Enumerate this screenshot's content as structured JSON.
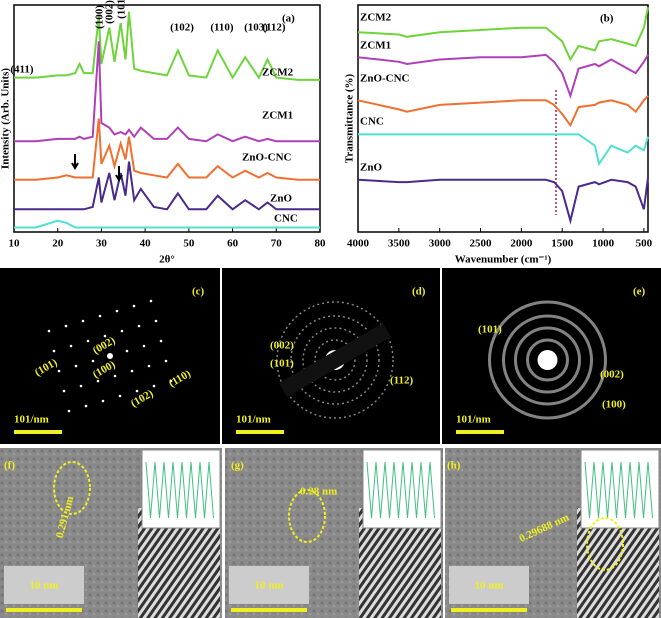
{
  "chart_data": [
    {
      "type": "line",
      "label": "(a)",
      "xlabel": "2θ°",
      "ylabel": "Intensity (Arb. Units)",
      "x": [
        10,
        15,
        20,
        22,
        24,
        25,
        26,
        28,
        29.4,
        30,
        31.8,
        33,
        34.4,
        35.5,
        36.3,
        37.5,
        39,
        42,
        45,
        47.5,
        50,
        54,
        56.6,
        60,
        62.9,
        66,
        68,
        70,
        75,
        80
      ],
      "xlim": [
        10,
        80
      ],
      "xticks": [
        10,
        20,
        30,
        40,
        50,
        60,
        70,
        80
      ],
      "ylim": [
        0,
        100
      ],
      "peak_labels": [
        "(411)",
        "(100)",
        "(002)",
        "(101)",
        "(102)",
        "(110)",
        "(103)",
        "(112)"
      ],
      "series": [
        {
          "name": "ZCM2",
          "color": "#6fd43c",
          "values": [
            68,
            68,
            69,
            69,
            70,
            74,
            70,
            70,
            95,
            74,
            90,
            75,
            92,
            76,
            97,
            72,
            71,
            70,
            69,
            80,
            69,
            68,
            80,
            68,
            77,
            68,
            76,
            68,
            67,
            67
          ]
        },
        {
          "name": "ZCM1",
          "color": "#b040b8",
          "values": [
            40,
            40,
            41,
            41,
            41,
            42,
            41,
            42,
            84,
            48,
            46,
            43,
            44,
            43,
            45,
            42,
            46,
            41,
            41,
            46,
            41,
            40,
            43,
            40,
            42,
            40,
            41,
            40,
            40,
            40
          ]
        },
        {
          "name": "ZnO-CNC",
          "color": "#f07030",
          "values": [
            23,
            23,
            24,
            25,
            24,
            24,
            24,
            24,
            50,
            30,
            38,
            29,
            39,
            32,
            42,
            27,
            26,
            25,
            24,
            30,
            24,
            24,
            29,
            24,
            27,
            24,
            26,
            24,
            23,
            23
          ]
        },
        {
          "name": "ZnO",
          "color": "#4a2a8a",
          "values": [
            10,
            10,
            10,
            10,
            10,
            10,
            10,
            11,
            24,
            13,
            26,
            14,
            26,
            16,
            31,
            14,
            19,
            11,
            10,
            17,
            10,
            10,
            16,
            10,
            14,
            10,
            13,
            10,
            10,
            10
          ]
        },
        {
          "name": "CNC",
          "color": "#50e0d0",
          "values": [
            2,
            2,
            5,
            4,
            2,
            2,
            2,
            2,
            2,
            2,
            2,
            2,
            2,
            2,
            2,
            2,
            2,
            2,
            2,
            2,
            2,
            2,
            2,
            2,
            2,
            2,
            2,
            2,
            2,
            2
          ]
        }
      ]
    },
    {
      "type": "line",
      "label": "(b)",
      "xlabel": "Wavenumber (cm⁻¹)",
      "ylabel": "Transmittance (%)",
      "x": [
        4000,
        3500,
        3400,
        3000,
        2500,
        2000,
        1700,
        1600,
        1500,
        1400,
        1300,
        1100,
        1050,
        900,
        700,
        600,
        500,
        450
      ],
      "xlim": [
        4000,
        450
      ],
      "xticks": [
        4000,
        3500,
        3000,
        2500,
        2000,
        1500,
        1000,
        500
      ],
      "ylim": [
        0,
        100
      ],
      "series": [
        {
          "name": "ZCM2",
          "color": "#6fd43c",
          "values": [
            88,
            87,
            86,
            88,
            89,
            90,
            90,
            87,
            84,
            76,
            82,
            80,
            84,
            85,
            83,
            82,
            90,
            99
          ]
        },
        {
          "name": "ZCM1",
          "color": "#b040b8",
          "values": [
            77,
            75,
            74,
            76,
            77,
            77,
            78,
            75,
            70,
            60,
            72,
            74,
            73,
            76,
            72,
            70,
            75,
            78
          ]
        },
        {
          "name": "ZnO-CNC",
          "color": "#f07030",
          "values": [
            58,
            54,
            53,
            56,
            57,
            58,
            58,
            56,
            52,
            47,
            55,
            56,
            57,
            58,
            56,
            53,
            58,
            60
          ]
        },
        {
          "name": "CNC",
          "color": "#50e0d0",
          "values": [
            43,
            43,
            43,
            43,
            43,
            43,
            43,
            43,
            43,
            43,
            43,
            38,
            30,
            38,
            35,
            38,
            36,
            42
          ]
        },
        {
          "name": "ZnO",
          "color": "#4a2a8a",
          "values": [
            23,
            22,
            22,
            23,
            23,
            23,
            23,
            22,
            18,
            5,
            20,
            22,
            21,
            23,
            22,
            20,
            10,
            24
          ]
        }
      ]
    }
  ],
  "panels": [
    {
      "label": "(c)",
      "texts": [
        "(002)",
        "(100)",
        "(101)",
        "(110)",
        "(102)"
      ],
      "scale": "101/nm"
    },
    {
      "label": "(d)",
      "texts": [
        "(002)",
        "(101)",
        "(112)"
      ],
      "scale": "101/nm"
    },
    {
      "label": "(e)",
      "texts": [
        "(101)",
        "(002)",
        "(100)"
      ],
      "scale": "101/nm"
    },
    {
      "label": "(f)",
      "texts": [
        "0.291 nm"
      ],
      "scale": "10 nm"
    },
    {
      "label": "(g)",
      "texts": [
        "0.28 nm"
      ],
      "scale": "10 nm"
    },
    {
      "label": "(h)",
      "texts": [
        "0.29688 nm"
      ],
      "scale": "10 nm"
    }
  ]
}
